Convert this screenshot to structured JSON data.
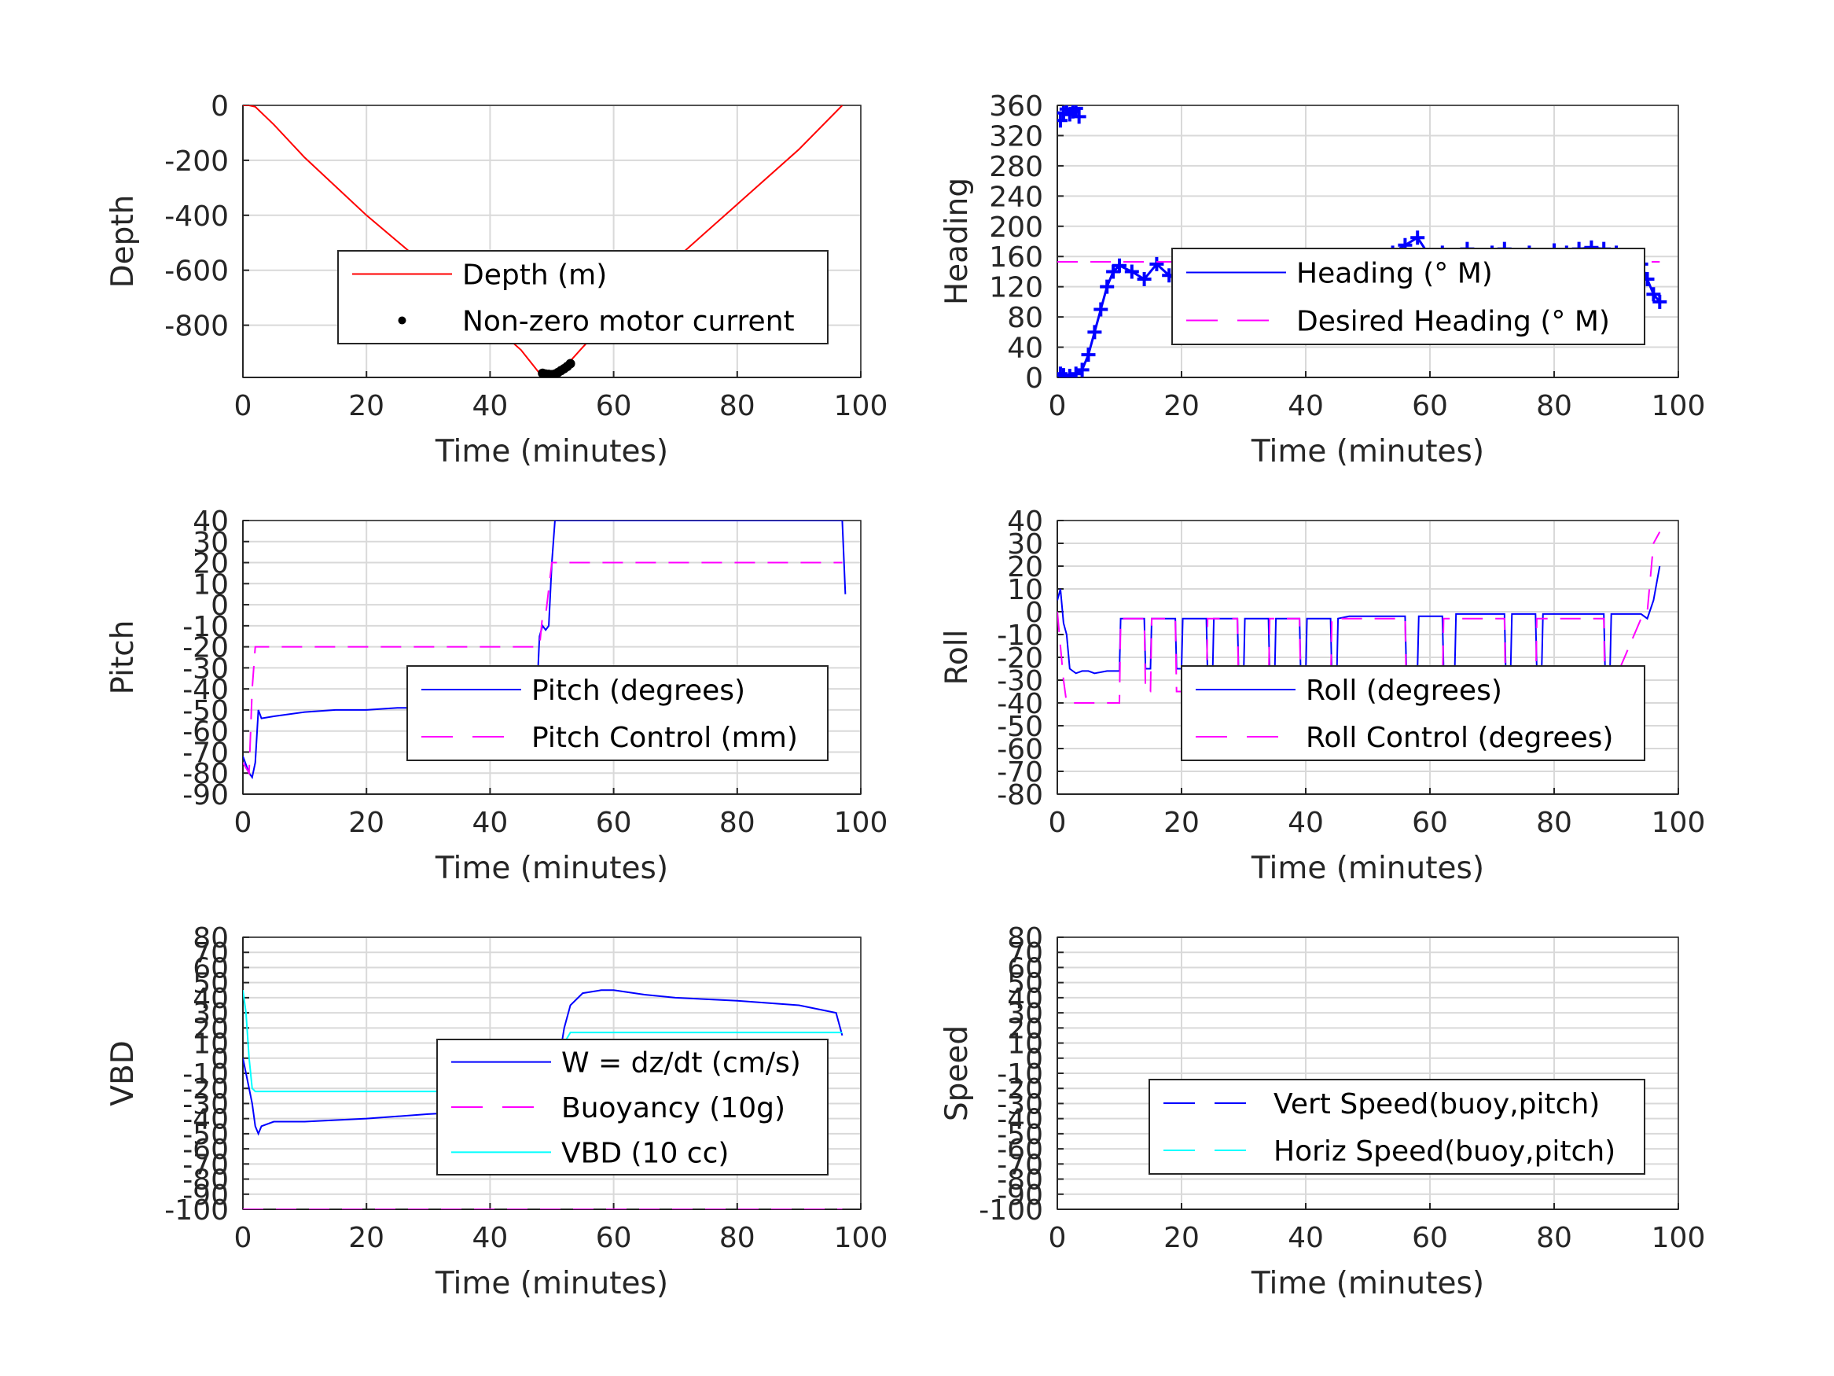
{
  "figure": {
    "bg": "#ffffff"
  },
  "chart_data": [
    {
      "type": "line",
      "ylabel": "Depth",
      "xlabel": "Time (minutes)",
      "xlim": [
        0,
        100
      ],
      "ylim": [
        -990,
        0
      ],
      "xticks": [
        0,
        20,
        40,
        60,
        80,
        100
      ],
      "yticks": [
        0,
        -200,
        -400,
        -600,
        -800
      ],
      "grid": true,
      "legend": {
        "position": "center-right",
        "entries": [
          "Depth (m)",
          "Non-zero motor current"
        ]
      },
      "series": [
        {
          "name": "Depth (m)",
          "color": "#ff0000",
          "style": "solid",
          "x": [
            0,
            1,
            2,
            5,
            10,
            20,
            30,
            40,
            45,
            48,
            50,
            52,
            55,
            60,
            70,
            80,
            90,
            97
          ],
          "y": [
            0,
            0,
            -5,
            -70,
            -190,
            -400,
            -590,
            -790,
            -890,
            -975,
            -982,
            -955,
            -880,
            -760,
            -560,
            -360,
            -160,
            0
          ]
        },
        {
          "name": "Non-zero motor current",
          "color": "#000000",
          "style": "dots",
          "x": [
            48.5,
            49,
            49.5,
            50,
            50.5,
            51,
            51.5,
            52,
            52.5,
            53
          ],
          "y": [
            -975,
            -978,
            -979,
            -980,
            -978,
            -972,
            -965,
            -958,
            -950,
            -940
          ]
        }
      ]
    },
    {
      "type": "line",
      "ylabel": "Heading",
      "xlabel": "Time (minutes)",
      "xlim": [
        0,
        100
      ],
      "ylim": [
        0,
        360
      ],
      "xticks": [
        0,
        20,
        40,
        60,
        80,
        100
      ],
      "yticks": [
        0,
        40,
        80,
        120,
        160,
        200,
        240,
        280,
        320,
        360
      ],
      "grid": true,
      "legend": {
        "position": "center-right",
        "entries": [
          "Heading (° M)",
          "Desired Heading (° M)"
        ]
      },
      "series": [
        {
          "name": "Heading (° M)",
          "color": "#0000ff",
          "style": "plus-markers",
          "x": [
            0.5,
            1,
            1.5,
            2,
            2.5,
            3,
            3.5,
            0.5,
            1,
            2,
            3,
            4,
            5,
            6,
            7,
            8,
            9,
            10,
            12,
            14,
            16,
            18,
            20,
            22,
            24,
            26,
            28,
            30,
            32,
            34,
            36,
            38,
            40,
            42,
            44,
            46,
            48,
            50,
            52,
            54,
            56,
            58,
            60,
            62,
            64,
            66,
            68,
            70,
            72,
            74,
            76,
            78,
            80,
            82,
            84,
            86,
            88,
            90,
            92,
            94,
            95,
            96,
            97
          ],
          "y": [
            340,
            350,
            355,
            348,
            352,
            356,
            345,
            5,
            3,
            2,
            5,
            10,
            30,
            60,
            90,
            120,
            140,
            148,
            140,
            130,
            150,
            135,
            125,
            148,
            130,
            150,
            140,
            125,
            148,
            135,
            150,
            145,
            135,
            152,
            140,
            148,
            140,
            155,
            160,
            165,
            175,
            185,
            160,
            165,
            155,
            170,
            155,
            165,
            170,
            160,
            165,
            160,
            168,
            165,
            170,
            172,
            170,
            165,
            160,
            150,
            130,
            110,
            100
          ]
        },
        {
          "name": "Desired Heading (° M)",
          "color": "#ff00ff",
          "style": "dashed",
          "x": [
            0,
            97
          ],
          "y": [
            153,
            153
          ]
        }
      ]
    },
    {
      "type": "line",
      "ylabel": "Pitch",
      "xlabel": "Time (minutes)",
      "xlim": [
        0,
        100
      ],
      "ylim": [
        -90,
        40
      ],
      "xticks": [
        0,
        20,
        40,
        60,
        80,
        100
      ],
      "yticks": [
        -90,
        -80,
        -70,
        -60,
        -50,
        -40,
        -30,
        -20,
        -10,
        0,
        10,
        20,
        30,
        40
      ],
      "grid": true,
      "legend": {
        "position": "center-right",
        "entries": [
          "Pitch (degrees)",
          "Pitch Control (mm)"
        ]
      },
      "series": [
        {
          "name": "Pitch (degrees)",
          "color": "#0000ff",
          "style": "solid",
          "x": [
            0,
            0.5,
            1,
            1.5,
            2,
            2.5,
            3,
            5,
            10,
            15,
            20,
            25,
            30,
            35,
            40,
            45,
            47.5,
            48,
            48.5,
            49,
            49.5,
            50,
            50.5,
            51,
            97,
            97.5
          ],
          "y": [
            -72,
            -76,
            -80,
            -82,
            -75,
            -50,
            -54,
            -53,
            -51,
            -50,
            -50,
            -49,
            -49,
            -48,
            -48,
            -48,
            -48,
            -15,
            -10,
            -12,
            -10,
            20,
            40,
            40,
            40,
            5
          ]
        },
        {
          "name": "Pitch Control (mm)",
          "color": "#ff00ff",
          "style": "dashed",
          "x": [
            0,
            1,
            1.5,
            2,
            2.5,
            48,
            48.5,
            49,
            50,
            51,
            97
          ],
          "y": [
            -75,
            -80,
            -40,
            -20,
            -20,
            -20,
            -5,
            -5,
            20,
            20,
            20
          ]
        }
      ]
    },
    {
      "type": "line",
      "ylabel": "Roll",
      "xlabel": "Time (minutes)",
      "xlim": [
        0,
        100
      ],
      "ylim": [
        -80,
        40
      ],
      "xticks": [
        0,
        20,
        40,
        60,
        80,
        100
      ],
      "yticks": [
        -80,
        -70,
        -60,
        -50,
        -40,
        -30,
        -20,
        -10,
        0,
        10,
        20,
        30,
        40
      ],
      "grid": true,
      "legend": {
        "position": "center-right",
        "entries": [
          "Roll (degrees)",
          "Roll Control (degrees)"
        ]
      },
      "series": [
        {
          "name": "Roll (degrees)",
          "color": "#0000ff",
          "style": "solid",
          "x": [
            0,
            0.5,
            1,
            1.5,
            2,
            3,
            4,
            5,
            6,
            8,
            10,
            10.2,
            14,
            14.2,
            15,
            15.2,
            19,
            19.2,
            20,
            20.2,
            24,
            24.2,
            25,
            25.2,
            29,
            29.2,
            30,
            30.2,
            34,
            34.2,
            35,
            35.2,
            39,
            39.2,
            40,
            40.2,
            44,
            44.2,
            45,
            45.2,
            47,
            50,
            56,
            56.2,
            58,
            58.2,
            62,
            62.2,
            64,
            64.2,
            72,
            72.2,
            73,
            73.2,
            77,
            77.2,
            78,
            78.2,
            88,
            88.2,
            89,
            89.2,
            94,
            95,
            96,
            97
          ],
          "y": [
            5,
            10,
            -5,
            -10,
            -25,
            -27,
            -26,
            -26,
            -27,
            -26,
            -26,
            -3,
            -3,
            -25,
            -25,
            -3,
            -3,
            -25,
            -25,
            -3,
            -3,
            -28,
            -28,
            -3,
            -3,
            -28,
            -28,
            -3,
            -3,
            -28,
            -28,
            -3,
            -3,
            -28,
            -28,
            -3,
            -3,
            -28,
            -28,
            -3,
            -2,
            -2,
            -2,
            -25,
            -25,
            -2,
            -2,
            -25,
            -25,
            -1,
            -1,
            -25,
            -25,
            -1,
            -1,
            -25,
            -25,
            -1,
            -1,
            -25,
            -25,
            -1,
            -1,
            -3,
            5,
            20
          ]
        },
        {
          "name": "Roll Control (degrees)",
          "color": "#ff00ff",
          "style": "dashed",
          "x": [
            0,
            1,
            1.5,
            2,
            4,
            6,
            10,
            10.2,
            14,
            14.2,
            15,
            15.2,
            19,
            19.2,
            24,
            24.2,
            29,
            29.2,
            34,
            34.2,
            39,
            39.2,
            44,
            44.2,
            56,
            56.2,
            62,
            62.2,
            72,
            72.2,
            77,
            77.2,
            88,
            88.2,
            94,
            95,
            96,
            97
          ],
          "y": [
            0,
            -30,
            -40,
            -40,
            -40,
            -40,
            -40,
            -3,
            -3,
            -35,
            -35,
            -3,
            -3,
            -35,
            -35,
            -3,
            -3,
            -35,
            -35,
            -3,
            -3,
            -35,
            -35,
            -3,
            -3,
            -35,
            -35,
            -3,
            -3,
            -40,
            -40,
            -3,
            -3,
            -40,
            -3,
            0,
            30,
            35
          ]
        }
      ]
    },
    {
      "type": "line",
      "ylabel": "VBD",
      "xlabel": "Time (minutes)",
      "xlim": [
        0,
        100
      ],
      "ylim": [
        -100,
        80
      ],
      "xticks": [
        0,
        20,
        40,
        60,
        80,
        100
      ],
      "yticks": [
        -100,
        -90,
        -80,
        -70,
        -60,
        -50,
        -40,
        -30,
        -20,
        -10,
        0,
        10,
        20,
        30,
        40,
        50,
        60,
        70,
        80
      ],
      "grid": true,
      "legend": {
        "position": "center-right",
        "entries": [
          "W = dz/dt (cm/s)",
          "Buoyancy (10g)",
          "VBD (10 cc)"
        ]
      },
      "series": [
        {
          "name": "W = dz/dt (cm/s)",
          "color": "#0000ff",
          "style": "solid",
          "x": [
            0,
            0.5,
            1,
            1.5,
            2,
            2.5,
            3,
            5,
            10,
            20,
            30,
            40,
            45,
            47,
            48,
            49,
            50,
            51,
            52,
            53,
            55,
            58,
            60,
            65,
            70,
            80,
            90,
            96,
            97
          ],
          "y": [
            0,
            -10,
            -20,
            -30,
            -45,
            -50,
            -45,
            -42,
            -42,
            -40,
            -37,
            -35,
            -34,
            -33,
            -30,
            -15,
            -10,
            -5,
            20,
            35,
            43,
            45,
            45,
            42,
            40,
            38,
            35,
            30,
            15
          ]
        },
        {
          "name": "Buoyancy (10g)",
          "color": "#ff00ff",
          "style": "dashed",
          "x": [
            0,
            97
          ],
          "y": [
            -100,
            -100
          ]
        },
        {
          "name": "VBD (10 cc)",
          "color": "#00ffff",
          "style": "solid",
          "x": [
            0,
            0.5,
            1,
            1.5,
            2,
            3,
            5,
            10,
            20,
            30,
            40,
            48,
            49,
            50,
            51,
            52,
            53,
            60,
            70,
            80,
            90,
            97
          ],
          "y": [
            45,
            30,
            0,
            -20,
            -22,
            -22,
            -22,
            -22,
            -22,
            -22,
            -22,
            -22,
            -15,
            -8,
            0,
            10,
            17,
            17,
            17,
            17,
            17,
            17
          ]
        }
      ]
    },
    {
      "type": "line",
      "ylabel": "Speed",
      "xlabel": "Time (minutes)",
      "xlim": [
        0,
        100
      ],
      "ylim": [
        -100,
        80
      ],
      "xticks": [
        0,
        20,
        40,
        60,
        80,
        100
      ],
      "yticks": [
        -100,
        -90,
        -80,
        -70,
        -60,
        -50,
        -40,
        -30,
        -20,
        -10,
        0,
        10,
        20,
        30,
        40,
        50,
        60,
        70,
        80
      ],
      "grid": true,
      "legend": {
        "position": "lower-right",
        "entries": [
          "Vert Speed(buoy,pitch)",
          "Horiz Speed(buoy,pitch)"
        ]
      },
      "series": [
        {
          "name": "Vert Speed(buoy,pitch)",
          "color": "#0000ff",
          "style": "dashed",
          "x": [],
          "y": []
        },
        {
          "name": "Horiz Speed(buoy,pitch)",
          "color": "#00ffff",
          "style": "dashed",
          "x": [],
          "y": []
        }
      ]
    }
  ]
}
